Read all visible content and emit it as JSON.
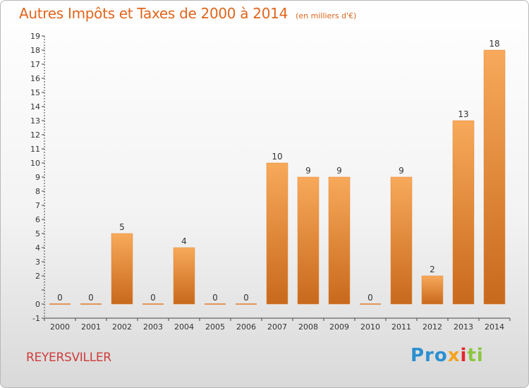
{
  "title": "Autres Impôts et Taxes de 2000 à 2014",
  "unit_note": "(en milliers d'€)",
  "commune": "REYERSVILLER",
  "logo": {
    "p1": "Pro",
    "p2": "x",
    "p3": "i",
    "p4": "ti"
  },
  "colors": {
    "bar_light": "#f8a95a",
    "bar_dark": "#c8691c",
    "title": "#e0651b",
    "commune": "#cf3b3b"
  },
  "chart_data": {
    "type": "bar",
    "categories": [
      "2000",
      "2001",
      "2002",
      "2003",
      "2004",
      "2005",
      "2006",
      "2007",
      "2008",
      "2009",
      "2010",
      "2011",
      "2012",
      "2013",
      "2014"
    ],
    "values": [
      0,
      0,
      5,
      0,
      4,
      0,
      0,
      10,
      9,
      9,
      0,
      9,
      2,
      13,
      18
    ],
    "ylim": [
      -1,
      19
    ],
    "yticks": [
      "-1",
      "0",
      "",
      "2",
      "3",
      "4",
      "5",
      "6",
      "7",
      "8",
      "9",
      "10",
      "11",
      "12",
      "13",
      "14",
      "15",
      "16",
      "17",
      "18",
      "19"
    ],
    "grid": false,
    "xlabel": "",
    "ylabel": ""
  }
}
